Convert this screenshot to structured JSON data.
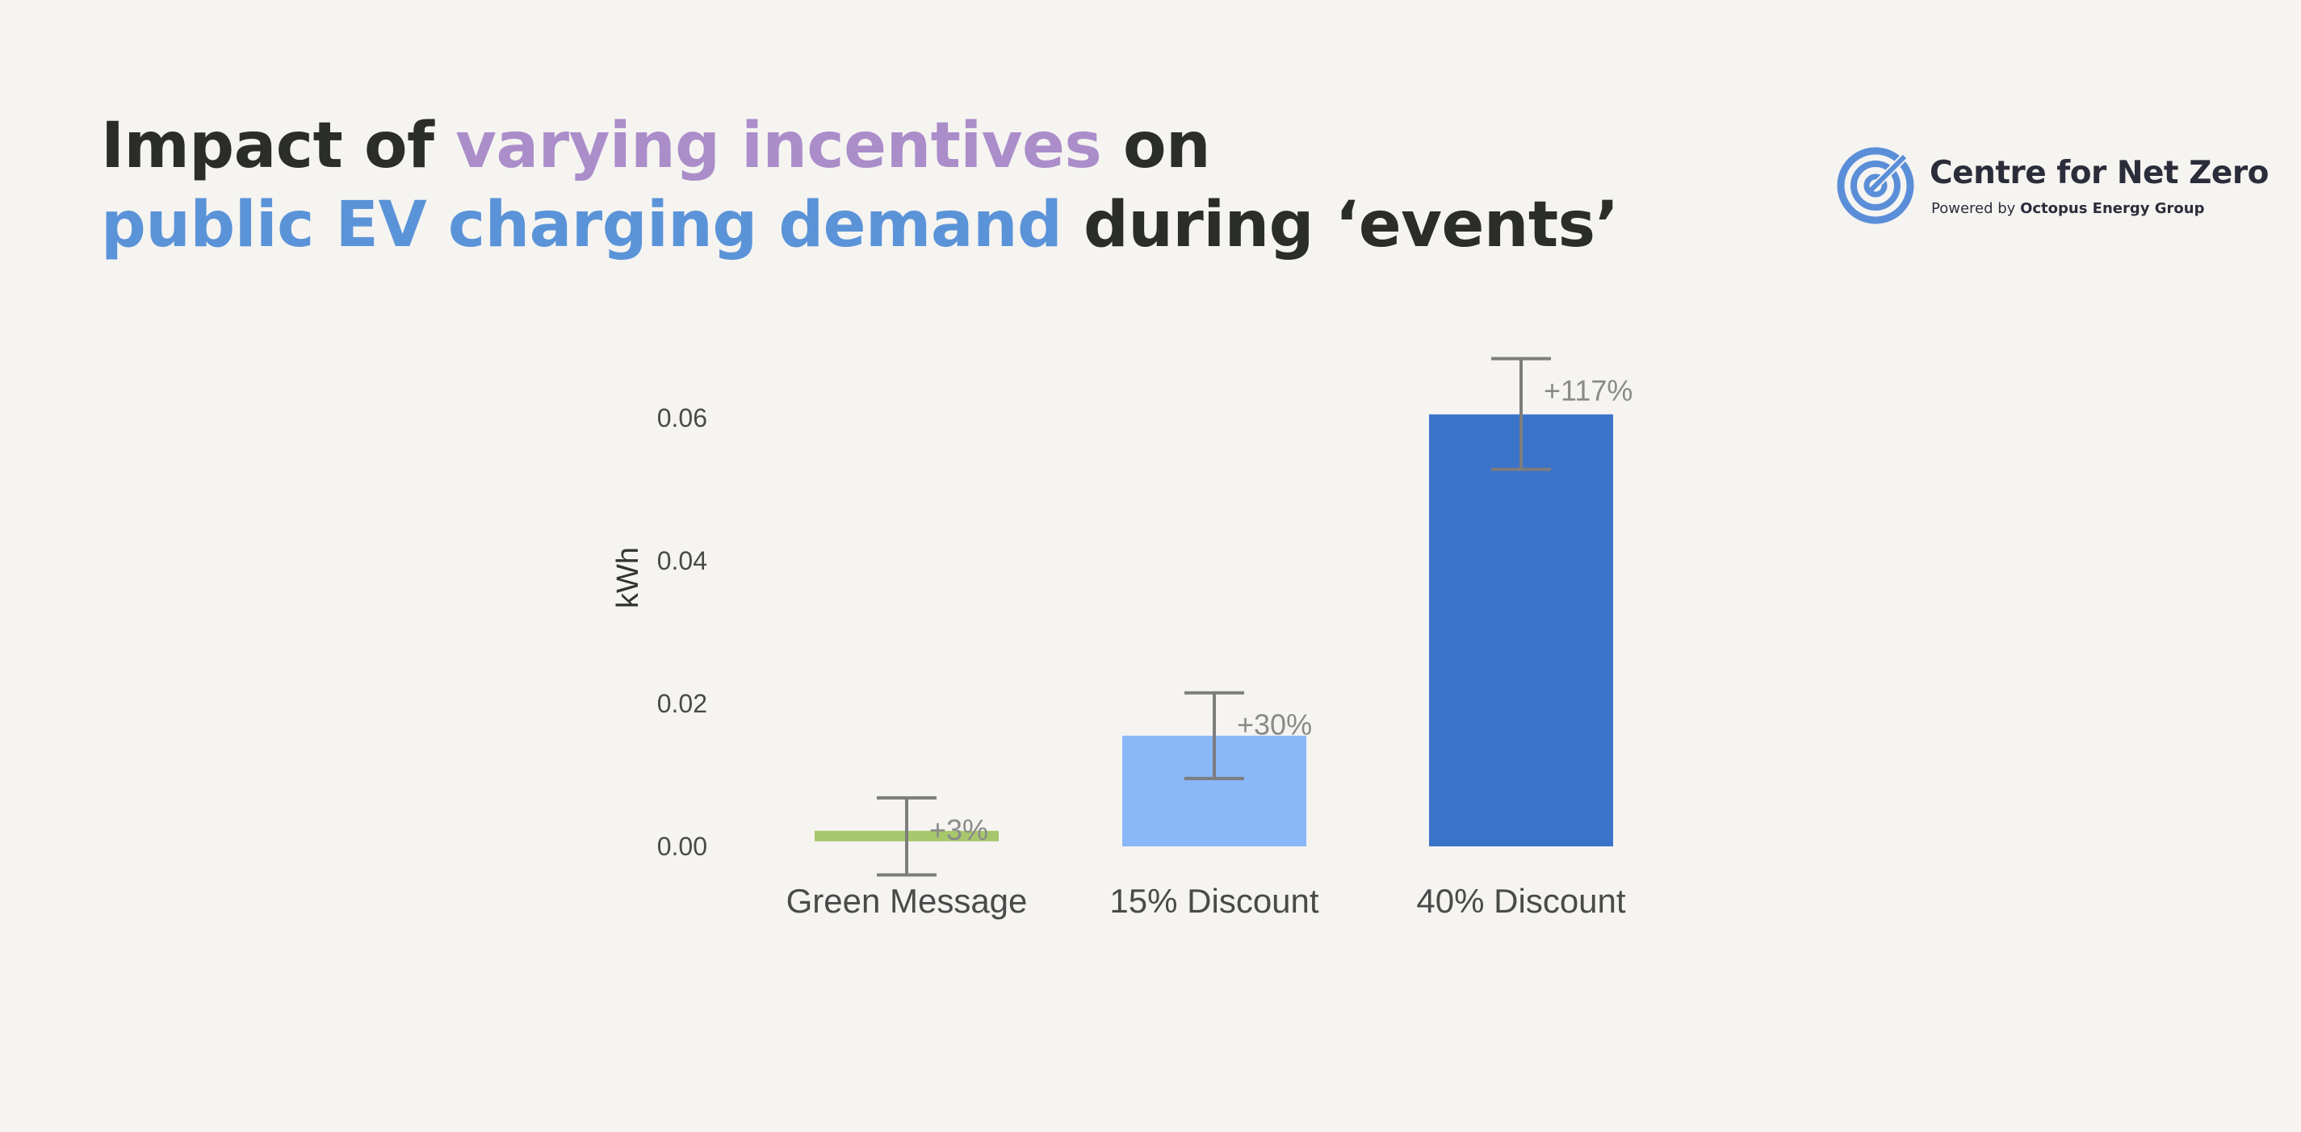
{
  "header": {
    "title_part1": "Impact of ",
    "title_highlight1": "varying incentives",
    "title_part2": " on",
    "title_highlight2": "public EV charging demand",
    "title_part3": " during ‘events’"
  },
  "logo": {
    "name": "Centre for Net Zero",
    "sub_prefix": "Powered by ",
    "sub_bold": "Octopus Energy Group",
    "icon": "target-icon"
  },
  "colors": {
    "title_text": "#2b2d2a",
    "highlight_purple": "#ab8dca",
    "highlight_blue": "#5b93d8",
    "bar_green": "#a6c76b",
    "bar_light_blue": "#8ab7f7",
    "bar_blue": "#3b73c8",
    "error_bar": "#7d7d7d",
    "logo_blue": "#5b8ed8"
  },
  "chart_data": {
    "type": "bar",
    "categories": [
      "Green Message",
      "15% Discount",
      "40% Discount"
    ],
    "values": [
      0.0015,
      0.0155,
      0.0605
    ],
    "error_low": [
      -0.004,
      0.0095,
      0.0528
    ],
    "error_high": [
      0.0068,
      0.0215,
      0.0683
    ],
    "labels": [
      "+3%",
      "+30%",
      "+117%"
    ],
    "bar_colors": [
      "#a6c76b",
      "#8ab7f7",
      "#3b73c8"
    ],
    "ylabel": "kWh",
    "xlabel": "",
    "yticks": [
      0.0,
      0.02,
      0.04,
      0.06
    ],
    "ytick_labels": [
      "0.00",
      "0.02",
      "0.04",
      "0.06"
    ],
    "ylim": [
      -0.004,
      0.07
    ],
    "grid": false,
    "legend": "none"
  }
}
